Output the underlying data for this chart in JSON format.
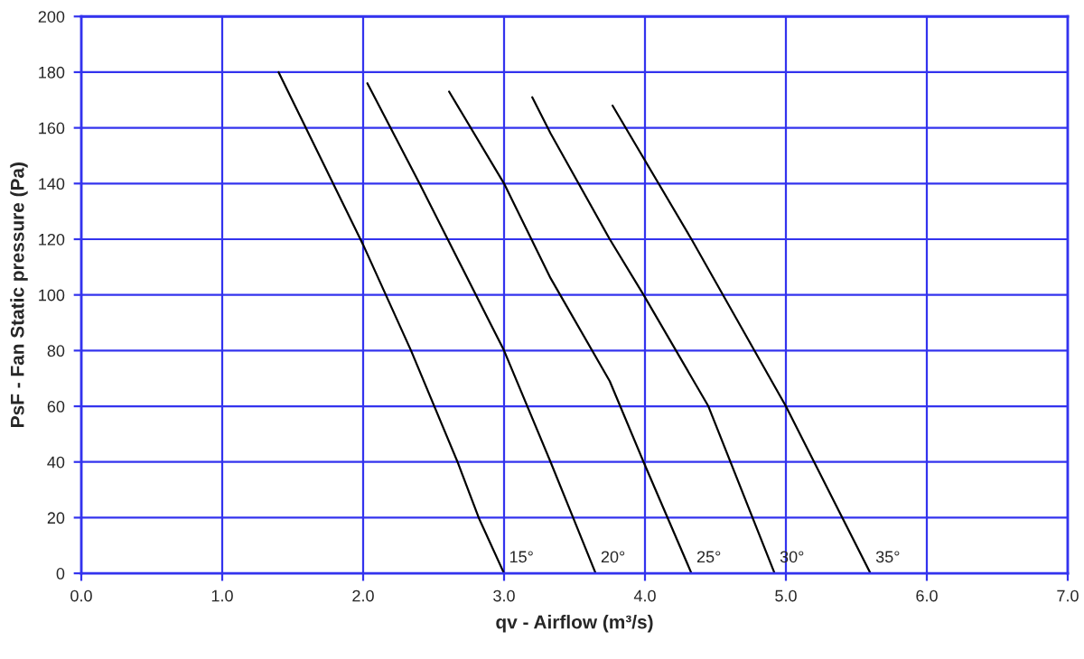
{
  "chart_data": {
    "type": "line",
    "xlabel": "qv - Airflow (m³/s)",
    "ylabel": "PsF - Fan Static pressure (Pa)",
    "xlim": [
      0,
      7
    ],
    "ylim": [
      0,
      200
    ],
    "xticks": [
      {
        "value": 0,
        "label": "0.0"
      },
      {
        "value": 1,
        "label": "1.0"
      },
      {
        "value": 2,
        "label": "2.0"
      },
      {
        "value": 3,
        "label": "3.0"
      },
      {
        "value": 4,
        "label": "4.0"
      },
      {
        "value": 5,
        "label": "5.0"
      },
      {
        "value": 6,
        "label": "6.0"
      },
      {
        "value": 7,
        "label": "7.0"
      }
    ],
    "yticks": [
      0,
      20,
      40,
      60,
      80,
      100,
      120,
      140,
      160,
      180,
      200
    ],
    "grid": true,
    "legend": false,
    "marker": "none",
    "line_style": "solid",
    "series": [
      {
        "name": "15°",
        "color": "#000000",
        "x": [
          1.4,
          2.0,
          2.34,
          2.67,
          2.82,
          3.0
        ],
        "values": [
          180,
          118,
          80,
          40,
          20,
          0
        ]
      },
      {
        "name": "20°",
        "color": "#000000",
        "x": [
          2.03,
          2.4,
          3.0,
          3.33,
          3.49,
          3.65
        ],
        "values": [
          176,
          140,
          80,
          40,
          20,
          0
        ]
      },
      {
        "name": "25°",
        "color": "#000000",
        "x": [
          2.61,
          3.0,
          3.33,
          3.75,
          3.99,
          4.33
        ],
        "values": [
          173,
          140,
          106,
          69,
          40,
          0
        ]
      },
      {
        "name": "30°",
        "color": "#000000",
        "x": [
          3.2,
          3.33,
          3.75,
          3.99,
          4.45,
          4.92
        ],
        "values": [
          171,
          158,
          120,
          100,
          60,
          0
        ]
      },
      {
        "name": "35°",
        "color": "#000000",
        "x": [
          3.77,
          4.33,
          5.0,
          5.6
        ],
        "values": [
          168,
          120,
          60,
          0
        ]
      }
    ]
  }
}
